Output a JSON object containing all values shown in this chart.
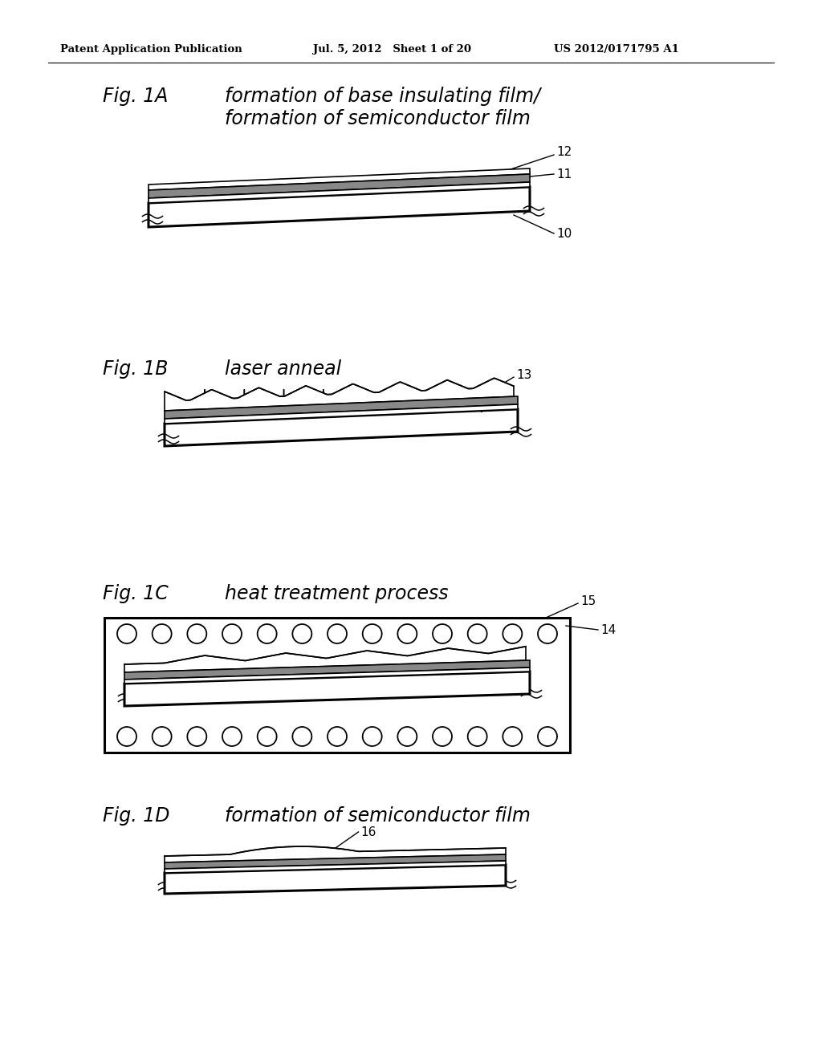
{
  "bg_color": "#ffffff",
  "header_left": "Patent Application Publication",
  "header_mid": "Jul. 5, 2012   Sheet 1 of 20",
  "header_right": "US 2012/0171795 A1",
  "line_color": "#000000",
  "fig1A_label": "Fig. 1A",
  "fig1A_text1": "formation of base insulating film/",
  "fig1A_text2": "formation of semiconductor film",
  "fig1B_label": "Fig. 1B",
  "fig1B_text": "laser anneal",
  "fig1C_label": "Fig. 1C",
  "fig1C_text": "heat treatment process",
  "fig1D_label": "Fig. 1D",
  "fig1D_text": "formation of semiconductor film",
  "label_10": "10",
  "label_11": "11",
  "label_12": "12",
  "label_13": "13",
  "label_14": "14",
  "label_15": "15",
  "label_16": "16"
}
